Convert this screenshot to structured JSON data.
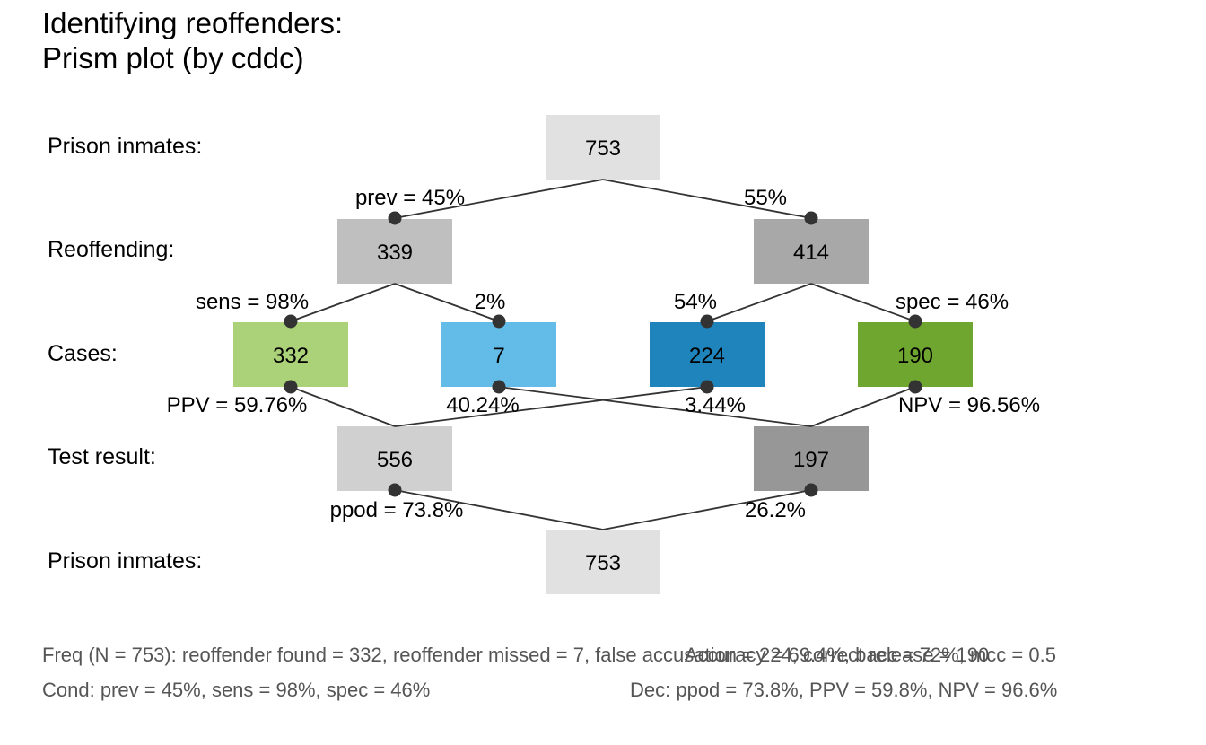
{
  "title": {
    "line1": "Identifying reoffenders:",
    "line2": "Prism plot (by cddc)"
  },
  "row_labels": {
    "top": "Prison inmates:",
    "cond": "Reoffending:",
    "cases": "Cases:",
    "dec": "Test result:",
    "bottom": "Prison inmates:"
  },
  "boxes": {
    "n_top": {
      "value": "753",
      "color": "#e1e1e1"
    },
    "cond_true": {
      "value": "339",
      "color": "#bfbfbf"
    },
    "cond_false": {
      "value": "414",
      "color": "#a8a8a8"
    },
    "hi": {
      "value": "332",
      "color": "#acd279"
    },
    "mi": {
      "value": "7",
      "color": "#63bce7"
    },
    "fa": {
      "value": "224",
      "color": "#1f84bc"
    },
    "cr": {
      "value": "190",
      "color": "#6fa62f"
    },
    "dec_pos": {
      "value": "556",
      "color": "#d0d0d0"
    },
    "dec_neg": {
      "value": "197",
      "color": "#979797"
    },
    "n_bottom": {
      "value": "753",
      "color": "#e1e1e1"
    }
  },
  "probs": {
    "prev": "prev = 45%",
    "not_prev": "55%",
    "sens": "sens = 98%",
    "mirt": "2%",
    "fart": "54%",
    "spec": "spec = 46%",
    "ppv": "PPV = 59.76%",
    "for": "40.24%",
    "fdr": "3.44%",
    "npv": "NPV = 96.56%",
    "ppod": "ppod = 73.8%",
    "not_ppod": "26.2%"
  },
  "footer": {
    "freq_line": "Freq (N = 753):  reoffender found = 332, reoffender missed = 7, false accusation = 224, correct release = 190",
    "acc_line": "Accuracy = 69.4%, bacc = 72%, mcc = 0.5",
    "cond_line": "Cond:  prev = 45%, sens = 98%, spec = 46%",
    "dec_line": "Dec:  ppod = 73.8%, PPV = 59.8%, NPV = 96.6%"
  }
}
